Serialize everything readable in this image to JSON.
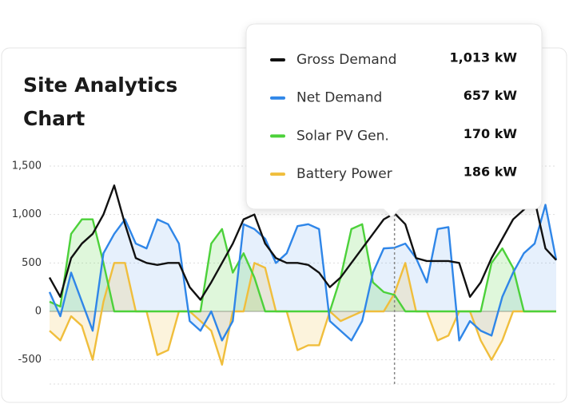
{
  "chart_data": {
    "type": "line",
    "title_lines": [
      "Site Analytics",
      "Chart"
    ],
    "ylim": [
      -750,
      1500
    ],
    "yticks": [
      {
        "value": 1500,
        "label": "1,500"
      },
      {
        "value": 1000,
        "label": "1,000"
      },
      500,
      0,
      -500
    ],
    "grid": true,
    "hover_index": 32,
    "series": [
      {
        "name": "Gross Demand",
        "color": "#111111",
        "values": [
          350,
          150,
          550,
          700,
          800,
          1000,
          1300,
          900,
          550,
          500,
          480,
          500,
          500,
          250,
          120,
          300,
          500,
          700,
          950,
          1000,
          700,
          550,
          500,
          500,
          480,
          400,
          250,
          350,
          500,
          650,
          800,
          950,
          1013,
          900,
          550,
          520,
          520,
          520,
          500,
          150,
          300,
          550,
          750,
          950,
          1050,
          1150,
          650,
          530
        ],
        "value_labels_hover": "1,013 kW"
      },
      {
        "name": "Net Demand",
        "color": "#2f86e8",
        "fill": "#2f86e8",
        "values": [
          200,
          -50,
          400,
          100,
          -200,
          600,
          800,
          950,
          700,
          650,
          950,
          900,
          700,
          -100,
          -200,
          0,
          -300,
          -100,
          900,
          850,
          750,
          500,
          600,
          880,
          900,
          850,
          -100,
          -200,
          -300,
          -100,
          400,
          650,
          657,
          700,
          550,
          300,
          850,
          870,
          -300,
          -100,
          -200,
          -250,
          150,
          400,
          600,
          700,
          1100,
          530
        ],
        "value_labels_hover": "657 kW"
      },
      {
        "name": "Solar PV Gen.",
        "color": "#4cd13a",
        "fill": "#4cd13a",
        "values": [
          100,
          50,
          800,
          950,
          950,
          500,
          0,
          0,
          0,
          0,
          0,
          0,
          0,
          0,
          0,
          700,
          850,
          400,
          600,
          350,
          0,
          0,
          0,
          0,
          0,
          0,
          0,
          350,
          850,
          900,
          300,
          200,
          170,
          0,
          0,
          0,
          0,
          0,
          0,
          0,
          0,
          500,
          650,
          450,
          0,
          0,
          0,
          0
        ],
        "value_labels_hover": "170 kW"
      },
      {
        "name": "Battery Power",
        "color": "#f0be3c",
        "fill": "#f0be3c",
        "values": [
          -200,
          -300,
          -50,
          -150,
          -500,
          100,
          500,
          500,
          0,
          0,
          -450,
          -400,
          0,
          0,
          -100,
          -200,
          -550,
          0,
          0,
          500,
          450,
          0,
          0,
          -400,
          -350,
          -350,
          0,
          -100,
          -50,
          0,
          0,
          0,
          186,
          500,
          0,
          0,
          -300,
          -250,
          0,
          0,
          -300,
          -500,
          -300,
          0,
          0,
          0,
          0,
          0
        ],
        "value_labels_hover": "186 kW"
      }
    ]
  }
}
